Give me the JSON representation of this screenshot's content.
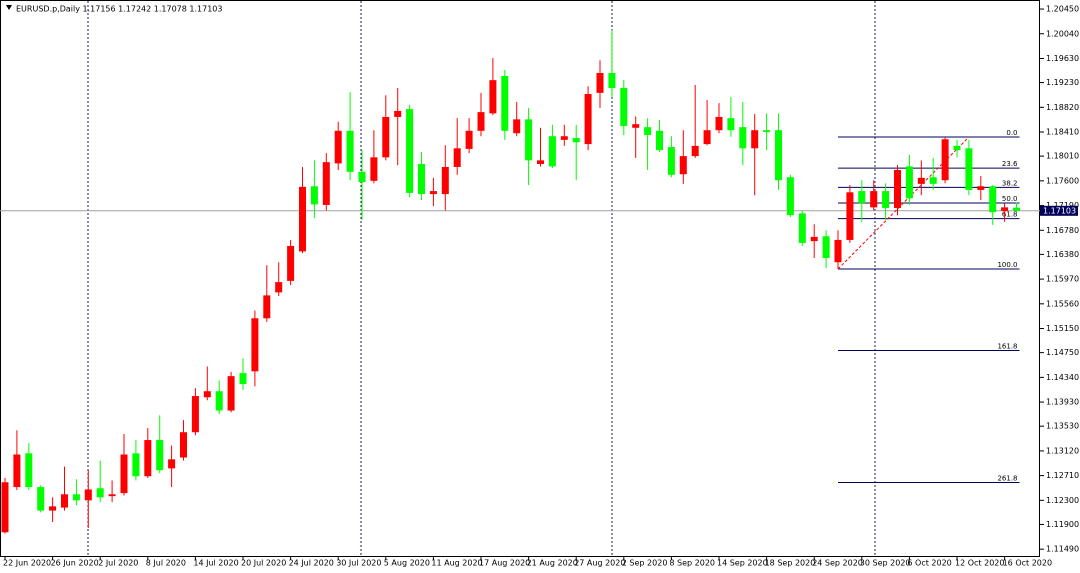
{
  "chart_data": {
    "type": "candlestick",
    "title": "EURUSD.p,Daily  1.17156 1.17242 1.17078 1.17103",
    "up_color": "#ff0000",
    "down_color": "#00ff00",
    "categories": [
      "22 Jun 2020",
      null,
      null,
      null,
      "26 Jun 2020",
      null,
      null,
      null,
      "2 Jul 2020",
      null,
      null,
      null,
      "8 Jul 2020",
      null,
      null,
      null,
      "14 Jul 2020",
      null,
      null,
      null,
      "20 Jul 2020",
      null,
      null,
      null,
      "24 Jul 2020",
      null,
      null,
      null,
      "30 Jul 2020",
      null,
      null,
      null,
      "5 Aug 2020",
      null,
      null,
      null,
      "11 Aug 2020",
      null,
      null,
      null,
      "17 Aug 2020",
      null,
      null,
      null,
      "21 Aug 2020",
      null,
      null,
      null,
      "27 Aug 2020",
      null,
      null,
      null,
      "2 Sep 2020",
      null,
      null,
      null,
      "8 Sep 2020",
      null,
      null,
      null,
      "14 Sep 2020",
      null,
      null,
      null,
      "18 Sep 2020",
      null,
      null,
      null,
      "24 Sep 2020",
      null,
      null,
      null,
      "30 Sep 2020",
      null,
      null,
      null,
      "6 Oct 2020",
      null,
      null,
      null,
      "12 Oct 2020",
      null,
      null,
      null,
      "16 Oct 2020",
      null
    ],
    "open": [
      1.1177,
      1.1252,
      1.1308,
      1.1252,
      1.1213,
      1.1218,
      1.124,
      1.123,
      1.125,
      1.1237,
      1.1242,
      1.1308,
      1.127,
      1.133,
      1.1283,
      1.1301,
      1.1343,
      1.1401,
      1.1411,
      1.1379,
      1.1441,
      1.1444,
      1.1532,
      1.1575,
      1.1594,
      1.1643,
      1.1751,
      1.172,
      1.1789,
      1.1843,
      1.1775,
      1.176,
      1.1799,
      1.1866,
      1.1879,
      1.1788,
      1.1738,
      1.1738,
      1.1783,
      1.1813,
      1.1843,
      1.1872,
      1.1934,
      1.1839,
      1.1862,
      1.1788,
      1.1834,
      1.1828,
      1.1831,
      1.1821,
      1.1906,
      1.1939,
      1.1914,
      1.1848,
      1.1849,
      1.1843,
      1.1816,
      1.1771,
      1.1801,
      1.1821,
      1.1844,
      1.1864,
      1.1849,
      1.1814,
      1.1844,
      1.1844,
      1.1766,
      1.1706,
      1.166,
      1.1668,
      1.1625,
      1.1662,
      1.1743,
      1.1716,
      1.1743,
      1.1715,
      1.1784,
      1.1755,
      1.1766,
      1.1761,
      1.1818,
      1.1814,
      1.1745,
      1.1751,
      1.171,
      1.17156
    ],
    "high": [
      1.1267,
      1.1346,
      1.1325,
      1.1255,
      1.1235,
      1.1286,
      1.1265,
      1.128,
      1.1296,
      1.1263,
      1.134,
      1.133,
      1.135,
      1.1371,
      1.1321,
      1.1363,
      1.1416,
      1.1452,
      1.1429,
      1.1443,
      1.1466,
      1.1545,
      1.162,
      1.1625,
      1.1662,
      1.1783,
      1.1794,
      1.1806,
      1.1858,
      1.1907,
      1.1811,
      1.1844,
      1.1902,
      1.1914,
      1.1886,
      1.1808,
      1.1765,
      1.1819,
      1.1864,
      1.1864,
      1.1906,
      1.1964,
      1.1944,
      1.1891,
      1.1881,
      1.1848,
      1.1853,
      1.1853,
      1.1853,
      1.1917,
      1.196,
      1.201,
      1.1927,
      1.1867,
      1.1864,
      1.1861,
      1.1834,
      1.1844,
      1.1919,
      1.1894,
      1.1889,
      1.1899,
      1.1891,
      1.1871,
      1.1872,
      1.1872,
      1.177,
      1.1711,
      1.1688,
      1.1678,
      1.1678,
      1.1753,
      1.1761,
      1.1761,
      1.1756,
      1.1786,
      1.1803,
      1.1794,
      1.1798,
      1.18327,
      1.1828,
      1.1828,
      1.1768,
      1.1753,
      1.1723,
      1.17242
    ],
    "low": [
      1.1175,
      1.1247,
      1.1247,
      1.121,
      1.1194,
      1.1213,
      1.1222,
      1.1184,
      1.1227,
      1.1227,
      1.1238,
      1.1263,
      1.1267,
      1.1275,
      1.1252,
      1.1296,
      1.1338,
      1.1396,
      1.1373,
      1.1376,
      1.1413,
      1.1419,
      1.1526,
      1.1569,
      1.1587,
      1.164,
      1.1698,
      1.1711,
      1.1778,
      1.1761,
      1.1695,
      1.1756,
      1.1794,
      1.1786,
      1.1733,
      1.1728,
      1.1718,
      1.1711,
      1.177,
      1.1806,
      1.1834,
      1.1869,
      1.1828,
      1.1834,
      1.1753,
      1.1784,
      1.1781,
      1.1818,
      1.1761,
      1.1811,
      1.1881,
      1.1899,
      1.1836,
      1.1798,
      1.1778,
      1.1808,
      1.1766,
      1.1755,
      1.1798,
      1.1819,
      1.1839,
      1.1833,
      1.1786,
      1.1736,
      1.1811,
      1.1745,
      1.17,
      1.1652,
      1.1632,
      1.1615,
      1.16138,
      1.1657,
      1.1692,
      1.1711,
      1.1695,
      1.1703,
      1.172,
      1.1736,
      1.1745,
      1.1756,
      1.1799,
      1.1736,
      1.1728,
      1.1687,
      1.1692,
      1.17078
    ],
    "close": [
      1.126,
      1.1306,
      1.1252,
      1.1213,
      1.122,
      1.124,
      1.123,
      1.1248,
      1.1235,
      1.124,
      1.1306,
      1.127,
      1.133,
      1.128,
      1.1298,
      1.1343,
      1.1403,
      1.1411,
      1.1379,
      1.1436,
      1.1423,
      1.1532,
      1.157,
      1.1592,
      1.1652,
      1.175,
      1.1721,
      1.1791,
      1.1843,
      1.1775,
      1.1758,
      1.1799,
      1.1866,
      1.1876,
      1.174,
      1.1738,
      1.1743,
      1.1783,
      1.1814,
      1.1843,
      1.1874,
      1.1927,
      1.1843,
      1.1862,
      1.1794,
      1.1794,
      1.1784,
      1.1834,
      1.1824,
      1.1904,
      1.1939,
      1.1914,
      1.1851,
      1.1854,
      1.1836,
      1.1811,
      1.177,
      1.1801,
      1.1818,
      1.1844,
      1.1866,
      1.1844,
      1.1814,
      1.1844,
      1.1841,
      1.1761,
      1.1703,
      1.1657,
      1.1667,
      1.1632,
      1.1662,
      1.1741,
      1.1723,
      1.1743,
      1.1715,
      1.1778,
      1.1731,
      1.1765,
      1.1755,
      1.1829,
      1.1811,
      1.1745,
      1.1751,
      1.1708,
      1.1716,
      1.17103
    ],
    "ylim": [
      1.1136,
      1.206
    ],
    "yticks": [
      {
        "value": 1.2045,
        "label": "1.20450"
      },
      {
        "value": 1.2004,
        "label": "1.20040"
      },
      {
        "value": 1.1963,
        "label": "1.19630"
      },
      {
        "value": 1.1923,
        "label": "1.19230"
      },
      {
        "value": 1.1882,
        "label": "1.18820"
      },
      {
        "value": 1.1841,
        "label": "1.18410"
      },
      {
        "value": 1.1801,
        "label": "1.18010"
      },
      {
        "value": 1.176,
        "label": "1.17600"
      },
      {
        "value": 1.1719,
        "label": "1.17190"
      },
      {
        "value": 1.1678,
        "label": "1.16780"
      },
      {
        "value": 1.1638,
        "label": "1.16380"
      },
      {
        "value": 1.1597,
        "label": "1.15970"
      },
      {
        "value": 1.1556,
        "label": "1.15560"
      },
      {
        "value": 1.1515,
        "label": "1.15150"
      },
      {
        "value": 1.1475,
        "label": "1.14750"
      },
      {
        "value": 1.1434,
        "label": "1.14340"
      },
      {
        "value": 1.1393,
        "label": "1.13930"
      },
      {
        "value": 1.1353,
        "label": "1.13530"
      },
      {
        "value": 1.1312,
        "label": "1.13120"
      },
      {
        "value": 1.1271,
        "label": "1.12710"
      },
      {
        "value": 1.123,
        "label": "1.12300"
      },
      {
        "value": 1.119,
        "label": "1.11900"
      },
      {
        "value": 1.1149,
        "label": "1.11490"
      }
    ],
    "bid": {
      "value": 1.17103,
      "label": "1.17103"
    },
    "fibonacci": [
      {
        "value": 1.18327,
        "label": "0.0"
      },
      {
        "value": 1.1781,
        "label": "23.6"
      },
      {
        "value": 1.17491,
        "label": "38.2"
      },
      {
        "value": 1.17233,
        "label": "50.0"
      },
      {
        "value": 1.16974,
        "label": "61.8"
      },
      {
        "value": 1.16138,
        "label": "100.0"
      },
      {
        "value": 1.14785,
        "label": "161.8"
      },
      {
        "value": 1.12596,
        "label": "261.8"
      }
    ]
  }
}
